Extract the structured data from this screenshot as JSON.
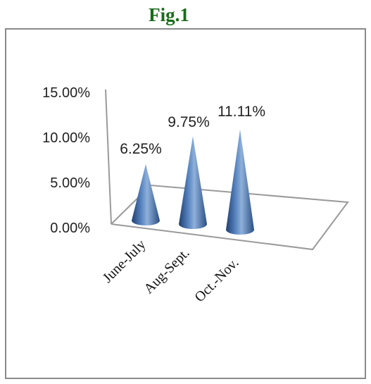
{
  "figure": {
    "title": "Fig.1"
  },
  "chart_data": {
    "type": "bar",
    "style": "3d-cone",
    "categories": [
      "June-July",
      "Aug-Sept.",
      "Oct.-Nov."
    ],
    "values": [
      6.25,
      9.75,
      11.11
    ],
    "data_labels": [
      "6.25%",
      "9.75%",
      "11.11%"
    ],
    "y_ticks": [
      "0.00%",
      "5.00%",
      "10.00%",
      "15.00%"
    ],
    "ylim": [
      0,
      15
    ],
    "title": "",
    "xlabel": "",
    "ylabel": "",
    "grid": false,
    "legend": "none",
    "colors": {
      "cone": "#4a78b5",
      "cone_dark": "#1f3f70",
      "cone_light": "#8fb0da",
      "axis": "#9a9a9a"
    }
  }
}
